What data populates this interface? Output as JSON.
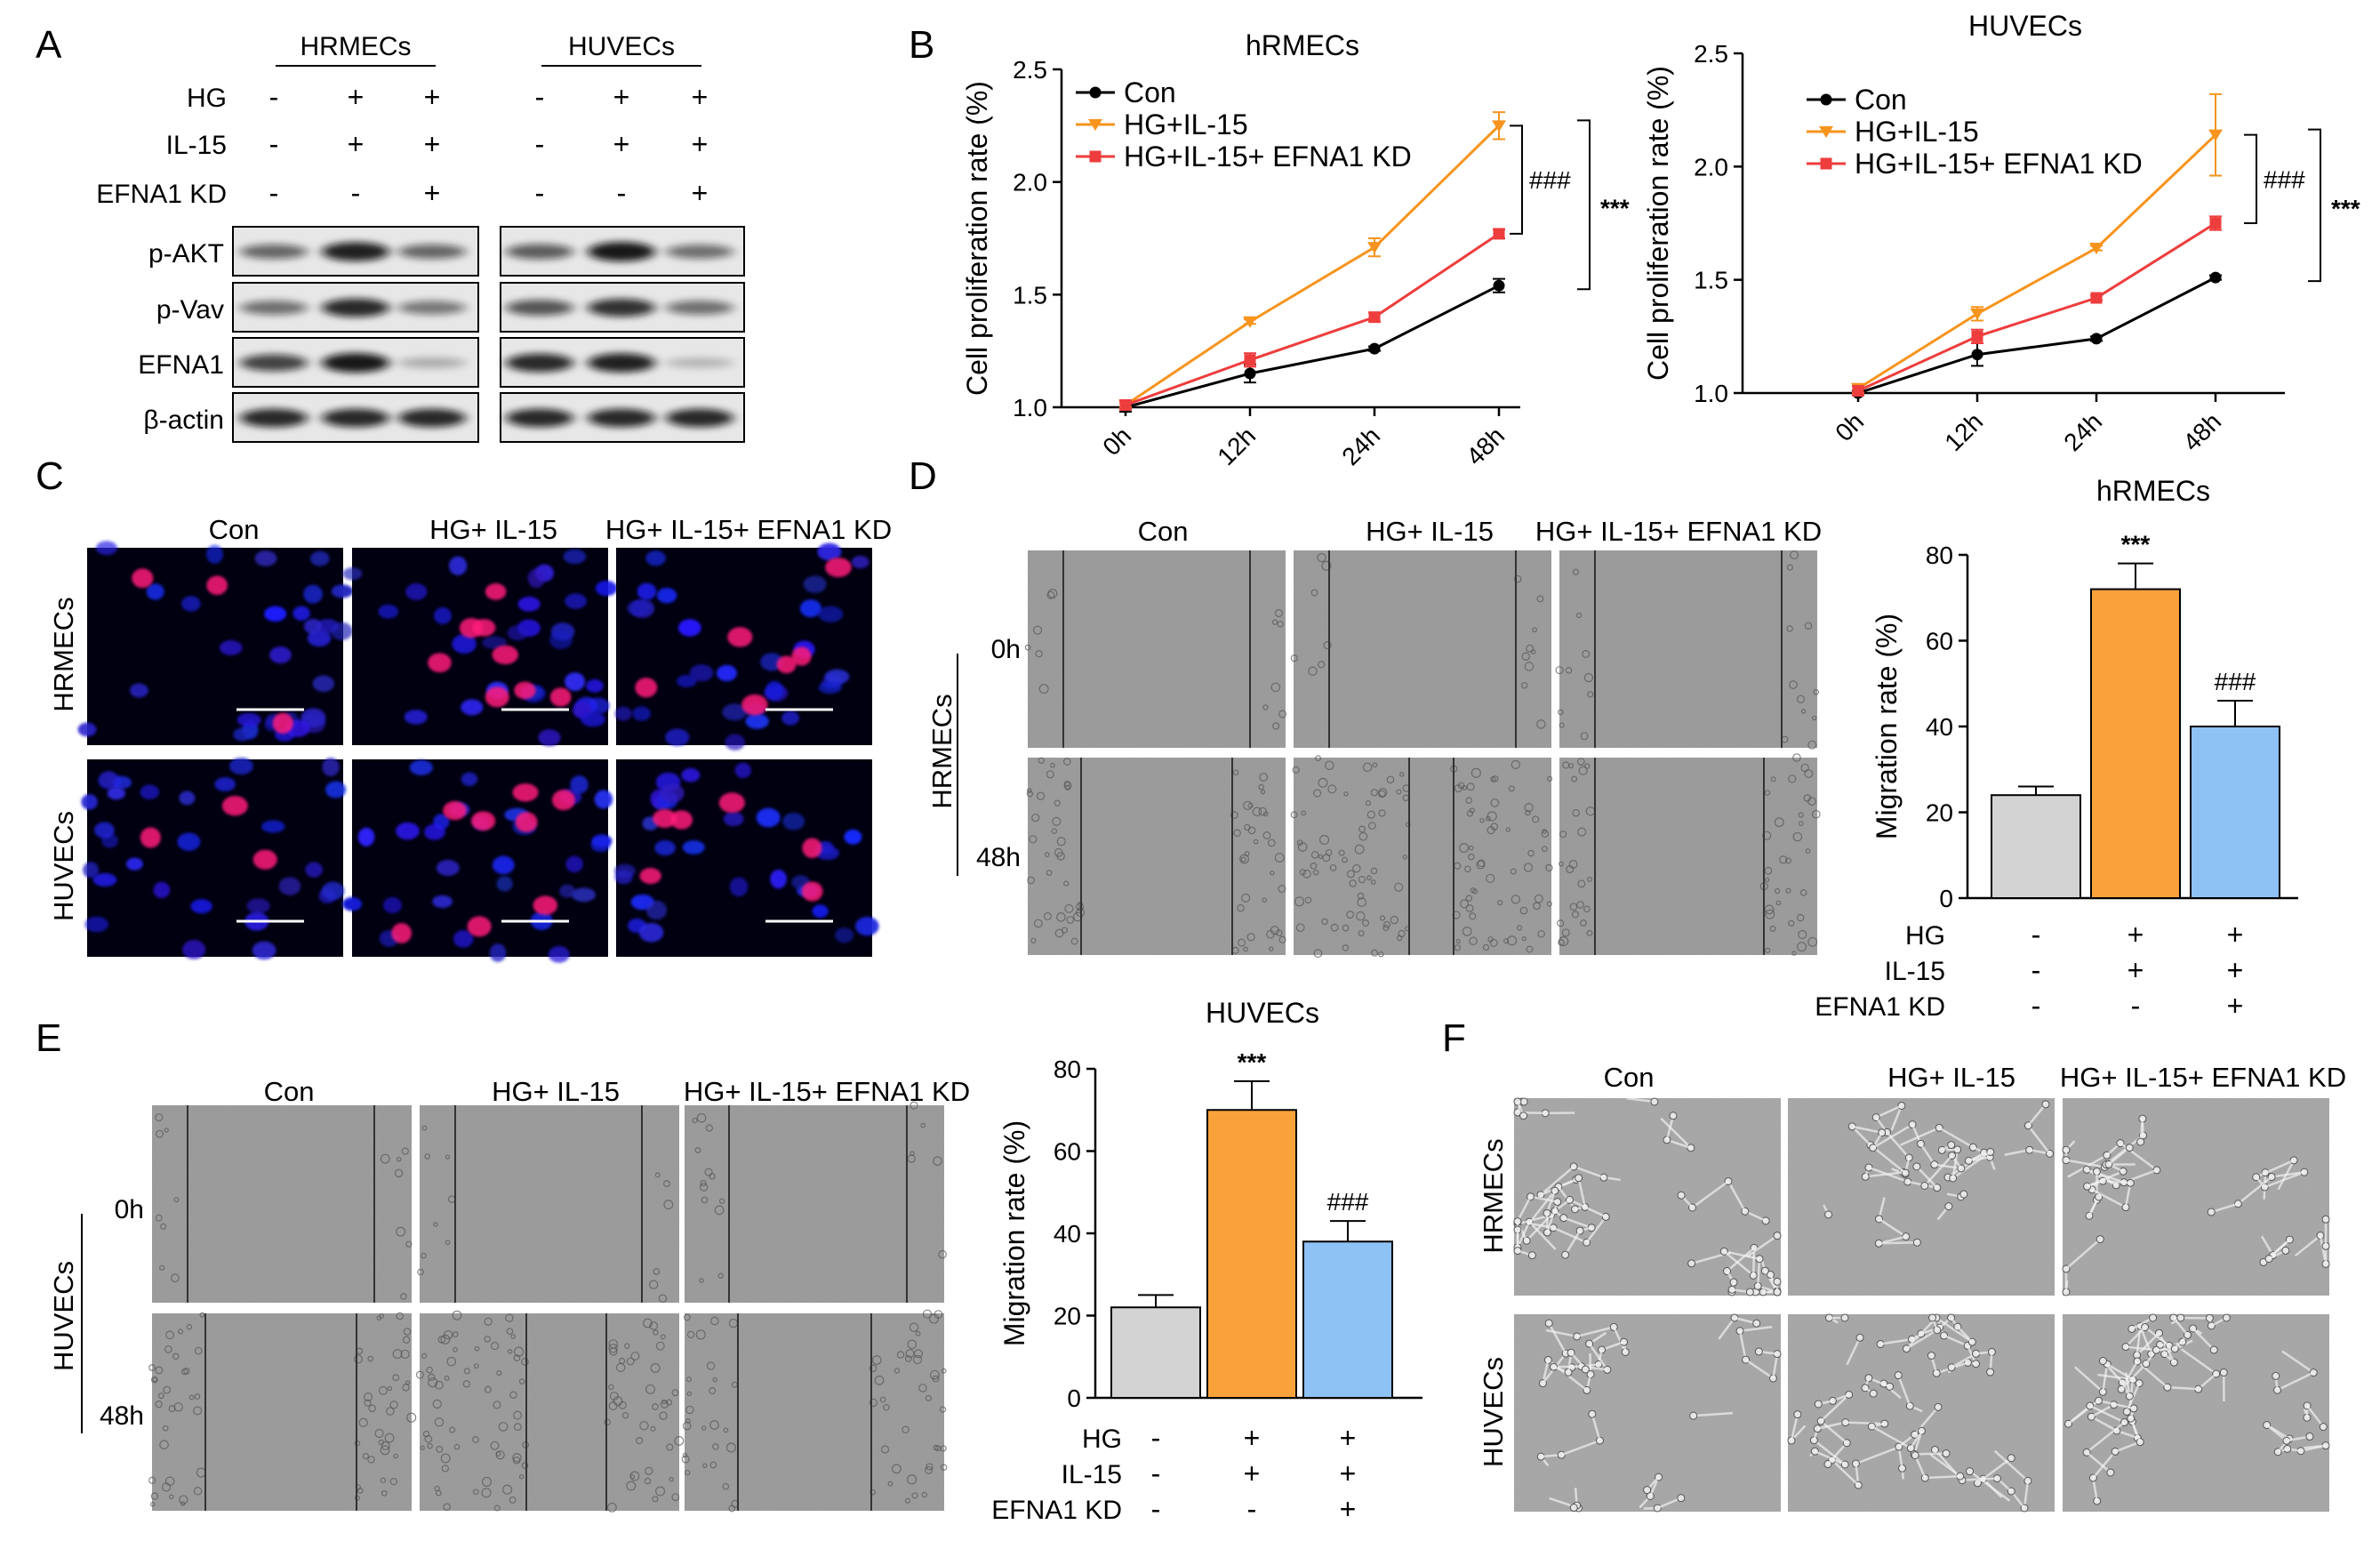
{
  "panels": {
    "A": {
      "letter": "A",
      "groups": [
        "HRMECs",
        "HUVECs"
      ],
      "conditions": [
        {
          "label": "HG",
          "values": [
            "-",
            "+",
            "+"
          ]
        },
        {
          "label": "IL-15",
          "values": [
            "-",
            "+",
            "+"
          ]
        },
        {
          "label": "EFNA1 KD",
          "values": [
            "-",
            "-",
            "+"
          ]
        }
      ],
      "blots": [
        "p-AKT",
        "p-Vav",
        "EFNA1",
        "β-actin"
      ]
    },
    "B": {
      "letter": "B"
    },
    "C": {
      "letter": "C",
      "columns": [
        "Con",
        "HG+ IL-15",
        "HG+ IL-15+ EFNA1 KD"
      ],
      "rows": [
        "HRMECs",
        "HUVECs"
      ]
    },
    "D": {
      "letter": "D",
      "columns": [
        "Con",
        "HG+ IL-15",
        "HG+ IL-15+ EFNA1 KD"
      ],
      "row_label": "HRMECs",
      "times": [
        "0h",
        "48h"
      ]
    },
    "E": {
      "letter": "E",
      "columns": [
        "Con",
        "HG+ IL-15",
        "HG+ IL-15+ EFNA1 KD"
      ],
      "row_label": "HUVECs",
      "times": [
        "0h",
        "48h"
      ]
    },
    "F": {
      "letter": "F",
      "columns": [
        "Con",
        "HG+ IL-15",
        "HG+ IL-15+ EFNA1 KD"
      ],
      "rows": [
        "HRMECs",
        "HUVECs"
      ]
    }
  },
  "chart_data": [
    {
      "type": "line",
      "title": "hRMECs",
      "ylabel": "Cell proliferation rate (%)",
      "categories": [
        "0h",
        "12h",
        "24h",
        "48h"
      ],
      "ylim": [
        1.0,
        2.5
      ],
      "yticks": [
        "1.0",
        "1.5",
        "2.0",
        "2.5"
      ],
      "series": [
        {
          "name": "Con",
          "color": "#000000",
          "marker": "circle",
          "values": [
            1.0,
            1.15,
            1.26,
            1.54
          ],
          "errors": [
            0.02,
            0.04,
            0.01,
            0.03
          ]
        },
        {
          "name": "HG+IL-15",
          "color": "#f7941d",
          "marker": "triangle-down",
          "values": [
            1.01,
            1.38,
            1.71,
            2.25
          ],
          "errors": [
            0.01,
            0.01,
            0.04,
            0.06
          ]
        },
        {
          "name": "HG+IL-15+ EFNA1 KD",
          "color": "#ee3d3d",
          "marker": "square",
          "values": [
            1.01,
            1.21,
            1.4,
            1.77
          ],
          "errors": [
            0.02,
            0.03,
            0.02,
            0.02
          ]
        }
      ],
      "annotations": [
        "###",
        "***"
      ],
      "legend": "top-left"
    },
    {
      "type": "line",
      "title": "HUVECs",
      "ylabel": "Cell proliferation rate (%)",
      "categories": [
        "0h",
        "12h",
        "24h",
        "48h"
      ],
      "ylim": [
        1.0,
        2.5
      ],
      "yticks": [
        "1.0",
        "1.5",
        "2.0",
        "2.5"
      ],
      "series": [
        {
          "name": "Con",
          "color": "#000000",
          "marker": "circle",
          "values": [
            1.0,
            1.17,
            1.24,
            1.51
          ],
          "errors": [
            0.01,
            0.05,
            0.01,
            0.01
          ]
        },
        {
          "name": "HG+IL-15",
          "color": "#f7941d",
          "marker": "triangle-down",
          "values": [
            1.02,
            1.35,
            1.64,
            2.14
          ],
          "errors": [
            0.02,
            0.03,
            0.01,
            0.18
          ]
        },
        {
          "name": "HG+IL-15+ EFNA1 KD",
          "color": "#ee3d3d",
          "marker": "square",
          "values": [
            1.01,
            1.25,
            1.42,
            1.75
          ],
          "errors": [
            0.02,
            0.03,
            0.01,
            0.03
          ]
        }
      ],
      "annotations": [
        "###",
        "***"
      ],
      "legend": "top-left"
    },
    {
      "type": "bar",
      "title": "hRMECs",
      "ylabel": "Migration rate (%)",
      "ylim": [
        0,
        80
      ],
      "yticks": [
        "0",
        "20",
        "40",
        "60",
        "80"
      ],
      "values": [
        24,
        72,
        40
      ],
      "errors": [
        2,
        6,
        6
      ],
      "colors": [
        "#d3d3d3",
        "#f9a23c",
        "#8ec1f4"
      ],
      "significance": [
        "",
        "***",
        "###"
      ],
      "conditions": [
        {
          "label": "HG",
          "values": [
            "-",
            "+",
            "+"
          ]
        },
        {
          "label": "IL-15",
          "values": [
            "-",
            "+",
            "+"
          ]
        },
        {
          "label": "EFNA1 KD",
          "values": [
            "-",
            "-",
            "+"
          ]
        }
      ]
    },
    {
      "type": "bar",
      "title": "HUVECs",
      "ylabel": "Migration rate (%)",
      "ylim": [
        0,
        80
      ],
      "yticks": [
        "0",
        "20",
        "40",
        "60",
        "80"
      ],
      "values": [
        22,
        70,
        38
      ],
      "errors": [
        3,
        7,
        5
      ],
      "colors": [
        "#d3d3d3",
        "#f9a23c",
        "#8ec1f4"
      ],
      "significance": [
        "",
        "***",
        "###"
      ],
      "conditions": [
        {
          "label": "HG",
          "values": [
            "-",
            "+",
            "+"
          ]
        },
        {
          "label": "IL-15",
          "values": [
            "-",
            "+",
            "+"
          ]
        },
        {
          "label": "EFNA1 KD",
          "values": [
            "-",
            "-",
            "+"
          ]
        }
      ]
    }
  ]
}
